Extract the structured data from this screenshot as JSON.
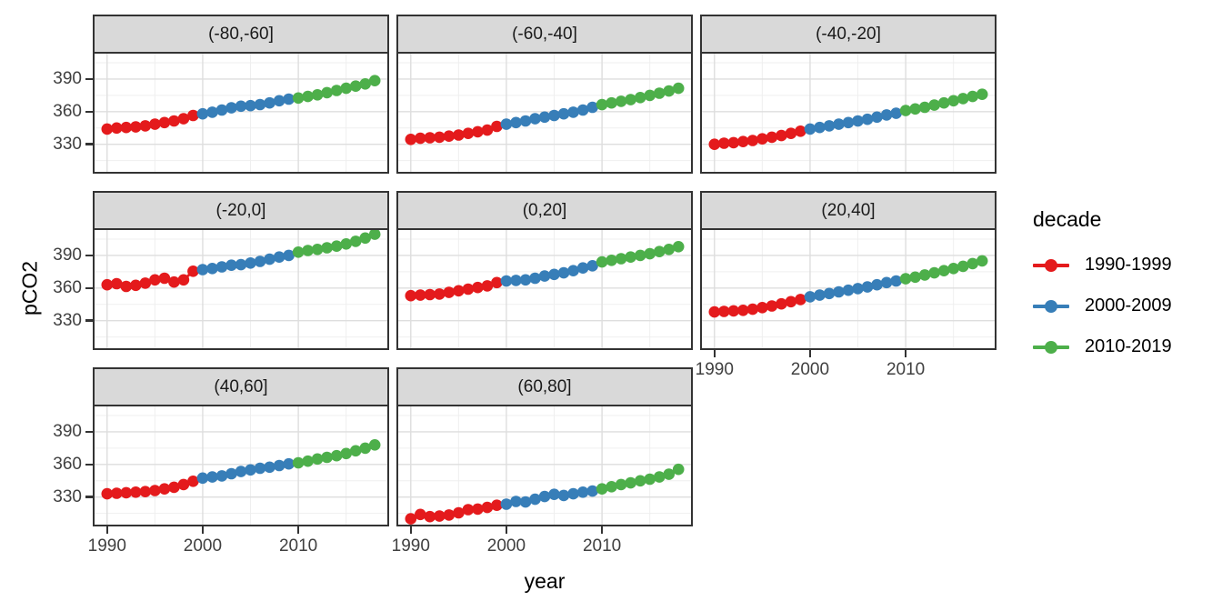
{
  "legend": {
    "title": "decade",
    "entries": [
      {
        "label": "1990-1999",
        "color": "#E41A1C"
      },
      {
        "label": "2000-2009",
        "color": "#377EB8"
      },
      {
        "label": "2010-2019",
        "color": "#4DAF4A"
      }
    ]
  },
  "chart_data": {
    "type": "scatter",
    "title": "",
    "xlabel": "year",
    "ylabel": "pCO2",
    "xlim": [
      1988.5,
      2019.5
    ],
    "ylim": [
      303,
      415
    ],
    "x_ticks": [
      1990,
      2000,
      2010
    ],
    "x_minor_ticks": [
      1995,
      2005,
      2015
    ],
    "y_ticks": [
      390,
      360,
      330
    ],
    "y_minor_ticks": [
      405,
      375,
      345,
      315
    ],
    "grid": true,
    "legend_position": "right",
    "legend_title": "decade",
    "style": {
      "point_radius": 6.3,
      "line_width": 2.8,
      "grid_major_color": "#dedede",
      "grid_minor_color": "#efefef",
      "panel_border_color": "#333333",
      "strip_background": "#d9d9d9"
    },
    "decades": [
      {
        "label": "1990-1999",
        "start": 1990,
        "end": 1999,
        "color": "#E41A1C"
      },
      {
        "label": "2000-2009",
        "start": 2000,
        "end": 2009,
        "color": "#377EB8"
      },
      {
        "label": "2010-2019",
        "start": 2010,
        "end": 2019,
        "color": "#4DAF4A"
      }
    ],
    "years": [
      1990,
      1991,
      1992,
      1993,
      1994,
      1995,
      1996,
      1997,
      1998,
      1999,
      2000,
      2001,
      2002,
      2003,
      2004,
      2005,
      2006,
      2007,
      2008,
      2009,
      2010,
      2011,
      2012,
      2013,
      2014,
      2015,
      2016,
      2017,
      2018
    ],
    "facets": [
      {
        "label": "(-80,-60]",
        "values": [
          344,
          345,
          345.5,
          346,
          347,
          348.5,
          350,
          351.5,
          353.5,
          356.5,
          358,
          359.5,
          361.5,
          363.5,
          365,
          365.5,
          366.5,
          368,
          370,
          371.5,
          372.5,
          374,
          375.5,
          377.5,
          379.5,
          381.5,
          383.5,
          385.5,
          388.5
        ]
      },
      {
        "label": "(-60,-40]",
        "values": [
          334.5,
          335.5,
          336,
          336.5,
          337.5,
          338.5,
          340,
          341.5,
          343,
          346.5,
          348.5,
          350,
          351.5,
          353.5,
          355,
          356.5,
          358,
          359.5,
          361.5,
          364,
          366.5,
          368,
          369.5,
          371,
          373,
          375,
          377,
          379,
          381.5
        ]
      },
      {
        "label": "(-40,-20]",
        "values": [
          330,
          331,
          331.5,
          332.5,
          333.5,
          335,
          336.5,
          338,
          340,
          342,
          344,
          345.5,
          347,
          348.5,
          350,
          351.5,
          353,
          355,
          357,
          358.5,
          361,
          362.5,
          364,
          366,
          368,
          370,
          372,
          374,
          376
        ]
      },
      {
        "label": "(-20,0]",
        "values": [
          363,
          364,
          361.5,
          362.5,
          364.5,
          367.5,
          369,
          365.5,
          367.5,
          375.5,
          377,
          378,
          379.5,
          381,
          381.5,
          383,
          384.5,
          386.5,
          388.5,
          390,
          393,
          394.5,
          395.5,
          397,
          398.5,
          400.5,
          403,
          406,
          409.5
        ]
      },
      {
        "label": "(0,20]",
        "values": [
          353,
          353.5,
          354,
          354.5,
          356,
          357.5,
          359,
          360.5,
          362,
          365,
          366.5,
          367,
          367.5,
          369,
          371,
          372.5,
          374,
          376,
          378.5,
          380.5,
          384,
          385.5,
          387,
          388.5,
          390,
          391.5,
          393.5,
          395.5,
          398
        ]
      },
      {
        "label": "(20,40]",
        "values": [
          338,
          338.5,
          339,
          339.5,
          340.5,
          342,
          343.5,
          345.5,
          347.5,
          349.5,
          352,
          353.5,
          355,
          356.5,
          358,
          359.5,
          361,
          363,
          365,
          366.5,
          368.5,
          370,
          372,
          374,
          376,
          378,
          380,
          382.5,
          385
        ]
      },
      {
        "label": "(40,60]",
        "values": [
          333,
          333.5,
          334,
          334.5,
          335,
          336,
          337.5,
          339,
          341.5,
          344.5,
          347.5,
          348.5,
          349.5,
          351.5,
          353.5,
          355,
          356.5,
          357.5,
          359,
          360.5,
          361.5,
          363,
          365,
          366.5,
          368,
          370,
          372.5,
          375,
          378
        ]
      },
      {
        "label": "(60,80]",
        "values": [
          310,
          314,
          312,
          312.5,
          313.5,
          315.5,
          318.5,
          319,
          320.5,
          322.5,
          323.5,
          326,
          325.5,
          328,
          330.5,
          332.5,
          331.5,
          333,
          334.5,
          335.5,
          337.5,
          339.5,
          341.5,
          343,
          345,
          346.5,
          348.5,
          351,
          355.5
        ]
      }
    ]
  }
}
